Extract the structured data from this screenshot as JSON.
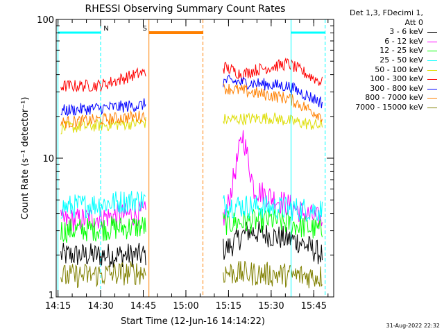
{
  "chart_data": {
    "type": "line",
    "title": "RHESSI Observing Summary Count Rates",
    "xlabel": "Start Time (12-Jun-16 14:14:22)",
    "ylabel": "Count Rate (s⁻¹ detector⁻¹)",
    "yscale": "log",
    "xlim": [
      "14:14:22",
      "15:52"
    ],
    "ylim": [
      1,
      100
    ],
    "x_ticks": [
      "14:15",
      "14:30",
      "14:45",
      "15:00",
      "15:15",
      "15:30",
      "15:45"
    ],
    "y_ticks": [
      "1",
      "10",
      "100"
    ],
    "grid": false,
    "legend_header": [
      "Det 1,3, FDecimi 1,",
      "Att 0"
    ],
    "legend_position": "right",
    "series": [
      {
        "name": "3 - 6 keV",
        "color": "#000000",
        "values": [
          [
            "14:16",
            2.0
          ],
          [
            "14:44",
            2.0
          ],
          [
            "15:14",
            2.2
          ],
          [
            "15:22",
            3.0
          ],
          [
            "15:40",
            2.5
          ],
          [
            "15:48",
            2.0
          ]
        ]
      },
      {
        "name": "6 - 12 keV",
        "color": "#ff00ff",
        "values": [
          [
            "14:16",
            3.5
          ],
          [
            "14:44",
            4.0
          ],
          [
            "15:14",
            3.8
          ],
          [
            "15:20",
            15.0
          ],
          [
            "15:24",
            6.0
          ],
          [
            "15:48",
            3.5
          ]
        ]
      },
      {
        "name": "12 - 25 keV",
        "color": "#00ff00",
        "values": [
          [
            "14:16",
            3.0
          ],
          [
            "14:44",
            3.2
          ],
          [
            "15:14",
            3.4
          ],
          [
            "15:30",
            3.6
          ],
          [
            "15:48",
            3.0
          ]
        ]
      },
      {
        "name": "25 - 50 keV",
        "color": "#00ffff",
        "values": [
          [
            "14:16",
            4.4
          ],
          [
            "14:44",
            5.0
          ],
          [
            "15:14",
            4.6
          ],
          [
            "15:48",
            4.2
          ]
        ]
      },
      {
        "name": "50 - 100 keV",
        "color": "#dddd00",
        "values": [
          [
            "14:16",
            16.5
          ],
          [
            "14:44",
            18.0
          ],
          [
            "15:14",
            19.0
          ],
          [
            "15:30",
            19.5
          ],
          [
            "15:48",
            17.0
          ]
        ]
      },
      {
        "name": "100 - 300 keV",
        "color": "#ff0000",
        "values": [
          [
            "14:16",
            33.0
          ],
          [
            "14:30",
            33.5
          ],
          [
            "14:44",
            41.0
          ],
          [
            "15:14",
            45.0
          ],
          [
            "15:20",
            40.0
          ],
          [
            "15:24",
            43.0
          ],
          [
            "15:36",
            48.0
          ],
          [
            "15:48",
            35.0
          ]
        ]
      },
      {
        "name": "300 - 800 keV",
        "color": "#0000ff",
        "values": [
          [
            "14:16",
            22.0
          ],
          [
            "14:44",
            24.0
          ],
          [
            "15:14",
            36.0
          ],
          [
            "15:36",
            33.0
          ],
          [
            "15:48",
            25.0
          ]
        ]
      },
      {
        "name": "800 - 7000 keV",
        "color": "#ff8000",
        "values": [
          [
            "14:16",
            18.0
          ],
          [
            "14:44",
            20.0
          ],
          [
            "15:14",
            32.0
          ],
          [
            "15:36",
            27.0
          ],
          [
            "15:48",
            20.0
          ]
        ]
      },
      {
        "name": "7000 - 15000 keV",
        "color": "#808000",
        "values": [
          [
            "14:16",
            1.4
          ],
          [
            "14:44",
            1.5
          ],
          [
            "15:14",
            1.5
          ],
          [
            "15:48",
            1.4
          ]
        ]
      }
    ],
    "annotations": [
      {
        "label": "N",
        "color": "#00ffff",
        "start": "14:15",
        "end": "14:30"
      },
      {
        "label": "S",
        "color": "#ff8000",
        "start": "14:47",
        "end": "15:06"
      },
      {
        "label": "",
        "color": "#00ffff",
        "start": "15:37",
        "end": "15:49"
      }
    ],
    "footer": "31-Aug-2022 22:32"
  }
}
